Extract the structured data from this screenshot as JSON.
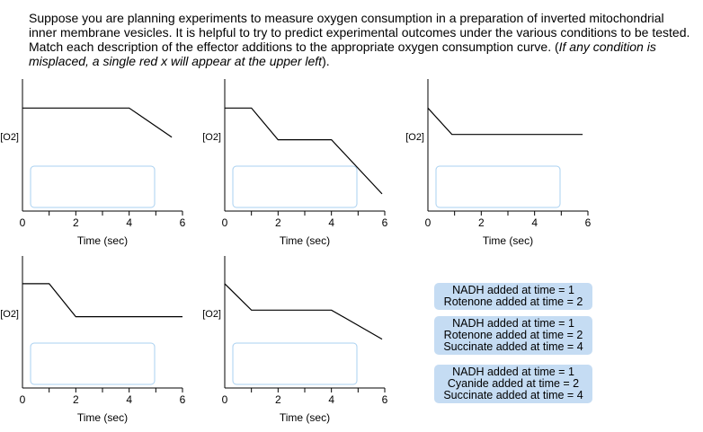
{
  "prompt": {
    "text": "Suppose you are planning experiments to measure oxygen consumption in a preparation of inverted mitochondrial inner membrane vesicles. It is helpful to try to predict experimental outcomes under the various conditions to be tested. Match each description of the effector additions to the appropriate oxygen consumption curve. (",
    "italic": "If any condition is misplaced, a single red x will appear at the upper left",
    "end": ")."
  },
  "colors": {
    "drop_border": "#a9d0f0",
    "card_bg": "#c5dcf3",
    "line": "#000000"
  },
  "chart_data": [
    {
      "type": "line",
      "xlabel": "Time (sec)",
      "ylabel": "[O2]",
      "xlim": [
        0,
        6
      ],
      "ticks": [
        "0",
        "2",
        "4",
        "6"
      ],
      "x": [
        0,
        4,
        5.6
      ],
      "y": [
        0.78,
        0.78,
        0.56
      ]
    },
    {
      "type": "line",
      "xlabel": "Time (sec)",
      "ylabel": "[O2]",
      "xlim": [
        0,
        6
      ],
      "ticks": [
        "0",
        "2",
        "4",
        "6"
      ],
      "x": [
        0,
        1,
        2,
        4,
        5.9
      ],
      "y": [
        0.78,
        0.78,
        0.54,
        0.54,
        0.13
      ]
    },
    {
      "type": "line",
      "xlabel": "Time (sec)",
      "ylabel": "[O2]",
      "xlim": [
        0,
        6
      ],
      "ticks": [
        "0",
        "2",
        "4",
        "6"
      ],
      "x": [
        0,
        0.9,
        5.8
      ],
      "y": [
        0.78,
        0.58,
        0.58
      ]
    },
    {
      "type": "line",
      "xlabel": "Time (sec)",
      "ylabel": "[O2]",
      "xlim": [
        0,
        6
      ],
      "ticks": [
        "0",
        "2",
        "4",
        "6"
      ],
      "x": [
        0,
        1,
        2,
        6
      ],
      "y": [
        0.79,
        0.79,
        0.54,
        0.54
      ]
    },
    {
      "type": "line",
      "xlabel": "Time (sec)",
      "ylabel": "[O2]",
      "xlim": [
        0,
        6
      ],
      "ticks": [
        "0",
        "2",
        "4",
        "6"
      ],
      "x": [
        0,
        1,
        4,
        5.9
      ],
      "y": [
        0.79,
        0.59,
        0.59,
        0.37
      ]
    }
  ],
  "cards": [
    {
      "lines": [
        "NADH added at time = 1",
        "Rotenone added at time = 2"
      ]
    },
    {
      "lines": [
        "NADH added at time = 1",
        "Rotenone added at time = 2",
        "Succinate added at time = 4"
      ]
    },
    {
      "lines": [
        "NADH added at time = 1",
        "Cyanide added at time = 2",
        "Succinate added at time = 4"
      ]
    }
  ]
}
